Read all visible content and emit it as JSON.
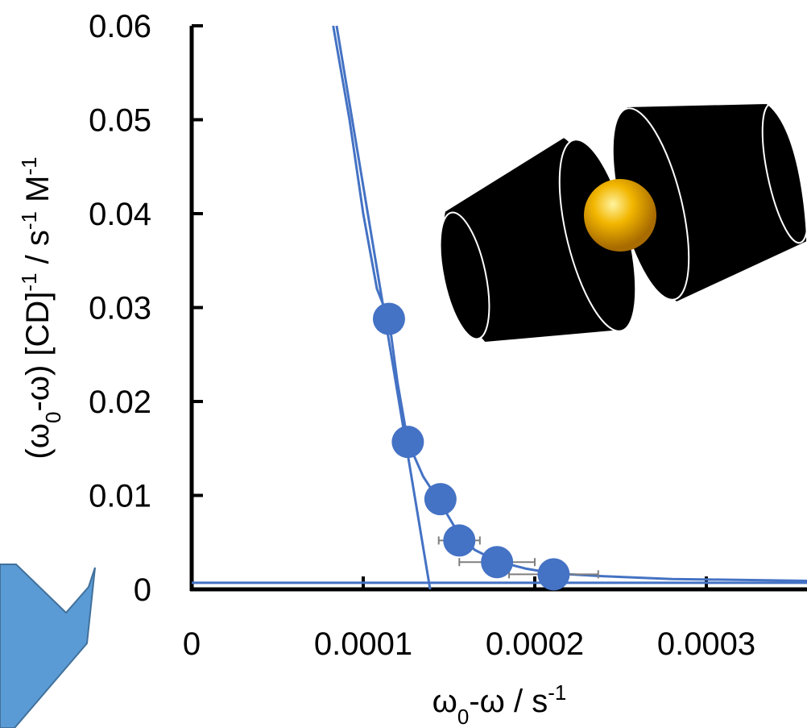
{
  "chart_data": {
    "type": "scatter",
    "title": "",
    "xlabel": {
      "parts": [
        "ω",
        "0",
        "-ω / s",
        "-1"
      ]
    },
    "ylabel": {
      "parts": [
        "(ω",
        "0",
        "-ω) [CD]",
        "-1",
        " / s",
        "-1",
        " M",
        "-1"
      ]
    },
    "xlim": [
      0,
      0.00036
    ],
    "ylim": [
      0,
      0.06
    ],
    "x_ticks": [
      {
        "value": 0,
        "label": "0"
      },
      {
        "value": 0.0001,
        "label": "0.0001"
      },
      {
        "value": 0.0002,
        "label": "0.0002"
      },
      {
        "value": 0.0003,
        "label": "0.0003"
      }
    ],
    "y_ticks": [
      {
        "value": 0,
        "label": "0"
      },
      {
        "value": 0.01,
        "label": "0.01"
      },
      {
        "value": 0.02,
        "label": "0.02"
      },
      {
        "value": 0.03,
        "label": "0.03"
      },
      {
        "value": 0.04,
        "label": "0.04"
      },
      {
        "value": 0.05,
        "label": "0.05"
      },
      {
        "value": 0.06,
        "label": "0.06"
      }
    ],
    "series": [
      {
        "points": [
          {
            "x": 0.000115,
            "y": 0.0288,
            "xerr": 0
          },
          {
            "x": 0.000126,
            "y": 0.0157,
            "xerr": 0
          },
          {
            "x": 0.000145,
            "y": 0.0096,
            "xerr": 0
          },
          {
            "x": 0.000156,
            "y": 0.0052,
            "xerr": 1.2e-05
          },
          {
            "x": 0.000178,
            "y": 0.0029,
            "xerr": 2.2e-05
          },
          {
            "x": 0.000211,
            "y": 0.0016,
            "xerr": 2.6e-05
          }
        ],
        "color": "#4472C4"
      }
    ],
    "fit_curve": [
      [
        8.25e-05,
        0.06
      ],
      [
        9.2e-05,
        0.05
      ],
      [
        0.0001,
        0.04
      ],
      [
        0.000108,
        0.032
      ],
      [
        0.000115,
        0.0288
      ],
      [
        0.00012,
        0.022
      ],
      [
        0.000126,
        0.0157
      ],
      [
        0.000135,
        0.012
      ],
      [
        0.000145,
        0.0092
      ],
      [
        0.000156,
        0.0058
      ],
      [
        0.000165,
        0.0042
      ],
      [
        0.000178,
        0.003
      ],
      [
        0.000195,
        0.0022
      ],
      [
        0.000211,
        0.0017
      ],
      [
        0.00024,
        0.0014
      ],
      [
        0.00028,
        0.0011
      ],
      [
        0.00036,
        0.0009
      ]
    ],
    "tangent_line": [
      [
        8.45e-05,
        0.06
      ],
      [
        0.000139,
        0
      ]
    ],
    "baseline_y": 0.0007,
    "grid": false,
    "legend": "none",
    "annotations": [
      "cyclodextrin-dimer-illustration",
      "arrow-illustration"
    ]
  }
}
